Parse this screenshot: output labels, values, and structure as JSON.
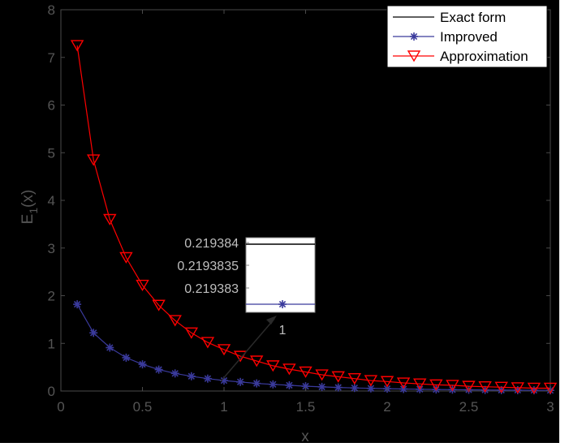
{
  "chart_data": {
    "type": "line",
    "title": "",
    "xlabel": "x",
    "ylabel": "E",
    "ylabel_sub": "1",
    "ylabel_suffix": "(x)",
    "xlim": [
      0,
      3
    ],
    "ylim": [
      0,
      8
    ],
    "xticks": [
      0,
      0.5,
      1,
      1.5,
      2,
      2.5,
      3
    ],
    "xtick_labels": [
      "0",
      "0.5",
      "1",
      "1.5",
      "2",
      "2.5",
      "3"
    ],
    "yticks": [
      0,
      1,
      2,
      3,
      4,
      5,
      6,
      7,
      8
    ],
    "ytick_labels": [
      "0",
      "1",
      "2",
      "3",
      "4",
      "5",
      "6",
      "7",
      "8"
    ],
    "grid": false,
    "legend_position": "top-right",
    "x": [
      0.1,
      0.2,
      0.3,
      0.4,
      0.5,
      0.6,
      0.7,
      0.8,
      0.9,
      1.0,
      1.1,
      1.2,
      1.3,
      1.4,
      1.5,
      1.6,
      1.7,
      1.8,
      1.9,
      2.0,
      2.1,
      2.2,
      2.3,
      2.4,
      2.5,
      2.6,
      2.7,
      2.8,
      2.9,
      3.0
    ],
    "series": [
      {
        "name": "Exact form",
        "color": "#000000",
        "marker": "none",
        "values": [
          1.82,
          1.22,
          0.91,
          0.7,
          0.56,
          0.45,
          0.37,
          0.31,
          0.26,
          0.22,
          0.19,
          0.16,
          0.14,
          0.12,
          0.1,
          0.086,
          0.075,
          0.065,
          0.056,
          0.049,
          0.043,
          0.037,
          0.033,
          0.029,
          0.025,
          0.022,
          0.019,
          0.017,
          0.015,
          0.013
        ]
      },
      {
        "name": "Improved",
        "color": "#3a3a9c",
        "marker": "asterisk",
        "values": [
          1.82,
          1.22,
          0.91,
          0.7,
          0.56,
          0.45,
          0.37,
          0.31,
          0.26,
          0.22,
          0.19,
          0.16,
          0.14,
          0.12,
          0.1,
          0.086,
          0.075,
          0.065,
          0.056,
          0.049,
          0.043,
          0.037,
          0.033,
          0.029,
          0.025,
          0.022,
          0.019,
          0.017,
          0.015,
          0.013
        ]
      },
      {
        "name": "Approximation",
        "color": "#ff0000",
        "marker": "triangle-down",
        "values": [
          7.25,
          4.85,
          3.6,
          2.8,
          2.22,
          1.8,
          1.48,
          1.22,
          1.02,
          0.87,
          0.73,
          0.63,
          0.53,
          0.46,
          0.4,
          0.34,
          0.3,
          0.26,
          0.22,
          0.2,
          0.17,
          0.15,
          0.13,
          0.12,
          0.1,
          0.09,
          0.08,
          0.07,
          0.06,
          0.06
        ]
      }
    ],
    "inset": {
      "ytick_labels": [
        "0.219384",
        "0.2193835",
        "0.219383"
      ],
      "exact_y": 0.2193841,
      "improved_y": 0.2193827,
      "ylim": [
        0.2193825,
        0.2193844
      ],
      "xtick_label": "1"
    }
  }
}
